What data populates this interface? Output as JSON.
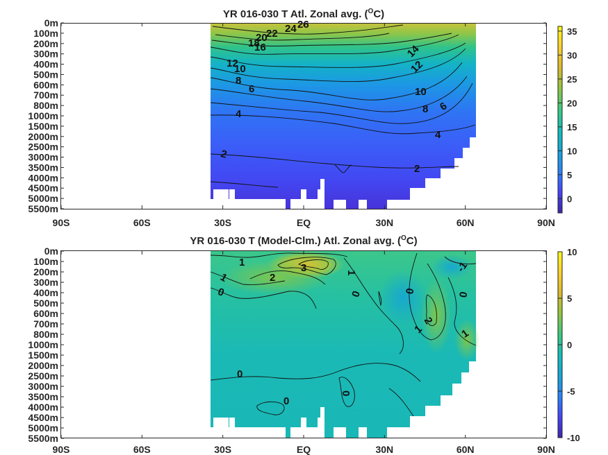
{
  "chart_data": [
    {
      "type": "heatmap",
      "title": "YR 016-030 T Atl. Zonal avg. (",
      "title_sup": "O",
      "title_end": "C)",
      "x_ticks": [
        "90S",
        "60S",
        "30S",
        "EQ",
        "30N",
        "60N",
        "90N"
      ],
      "x_values": [
        -90,
        -60,
        -30,
        0,
        30,
        60,
        90
      ],
      "y_ticks": [
        "0m",
        "100m",
        "200m",
        "300m",
        "400m",
        "500m",
        "600m",
        "700m",
        "800m",
        "1000m",
        "1500m",
        "2000m",
        "2500m",
        "3000m",
        "3500m",
        "4000m",
        "4500m",
        "5000m",
        "5500m"
      ],
      "data_x_range": [
        -34,
        64
      ],
      "colorbar": {
        "ticks": [
          "35",
          "30",
          "25",
          "20",
          "15",
          "10",
          "5",
          "0"
        ],
        "tick_values": [
          35,
          30,
          25,
          20,
          15,
          10,
          5,
          0
        ],
        "range": [
          -3,
          36
        ]
      },
      "contour_labels": [
        "26",
        "24",
        "22",
        "20",
        "18",
        "16",
        "14",
        "12",
        "12",
        "10",
        "10",
        "8",
        "8",
        "6",
        "6",
        "4",
        "4",
        "2",
        "2"
      ],
      "colormap": [
        "#3e26a8",
        "#4743f9",
        "#2b82fa",
        "#17a6d8",
        "#12beb9",
        "#3fc97c",
        "#94c540",
        "#d9b92f",
        "#fdd02c",
        "#f9fb14"
      ]
    },
    {
      "type": "heatmap",
      "title": "YR 016-030 T (Model-Clm.) Atl. Zonal avg. (",
      "title_sup": "O",
      "title_end": "C)",
      "x_ticks": [
        "90S",
        "60S",
        "30S",
        "EQ",
        "30N",
        "60N",
        "90N"
      ],
      "x_values": [
        -90,
        -60,
        -30,
        0,
        30,
        60,
        90
      ],
      "y_ticks": [
        "0m",
        "100m",
        "200m",
        "300m",
        "400m",
        "500m",
        "600m",
        "700m",
        "800m",
        "1000m",
        "1500m",
        "2000m",
        "2500m",
        "3000m",
        "3500m",
        "4000m",
        "4500m",
        "5000m",
        "5500m"
      ],
      "data_x_range": [
        -34,
        64
      ],
      "colorbar": {
        "ticks": [
          "10",
          "5",
          "0",
          "-5",
          "-10"
        ],
        "tick_values": [
          10,
          5,
          0,
          -5,
          -10
        ],
        "range": [
          -10,
          10
        ]
      },
      "contour_labels": [
        "1",
        "3",
        "2",
        "1",
        "0",
        "1",
        "0",
        "0",
        "-1",
        "0",
        "2",
        "1",
        "1",
        "0",
        "0",
        "0"
      ],
      "colormap": [
        "#3e26a8",
        "#4743f9",
        "#2b82fa",
        "#17a6d8",
        "#12beb9",
        "#3fc97c",
        "#94c540",
        "#d9b92f",
        "#fdd02c",
        "#f9fb14"
      ]
    }
  ]
}
